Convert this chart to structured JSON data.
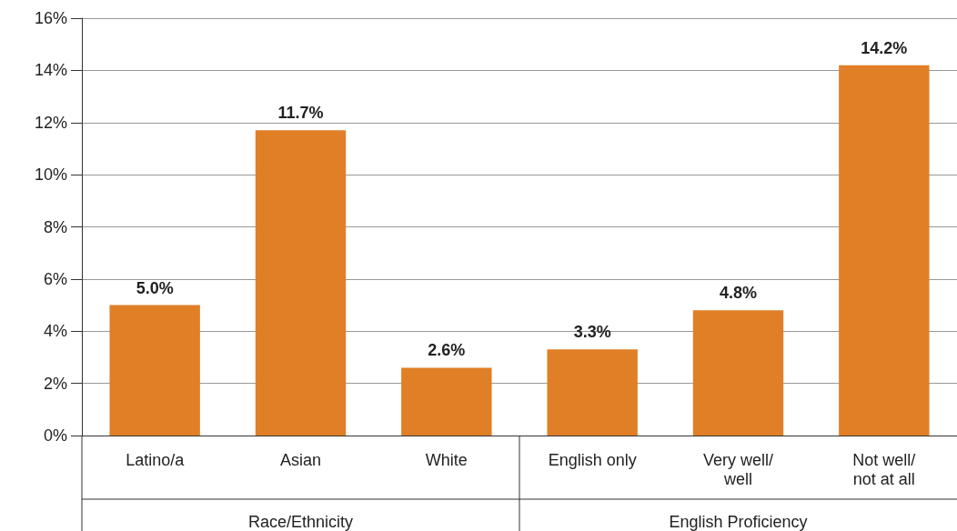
{
  "chart_data": {
    "type": "bar",
    "categories": [
      "Latino/a",
      "Asian",
      "White",
      "English only",
      "Very well/\nwell",
      "Not well/\nnot at all"
    ],
    "values": [
      5.0,
      11.7,
      2.6,
      3.3,
      4.8,
      14.2
    ],
    "value_labels": [
      "5.0%",
      "11.7%",
      "2.6%",
      "3.3%",
      "4.8%",
      "14.2%"
    ],
    "color": "#e07f26",
    "ylim": [
      0,
      16
    ],
    "yticks": [
      {
        "value": 0,
        "label": "0%"
      },
      {
        "value": 2,
        "label": "2%"
      },
      {
        "value": 4,
        "label": "4%"
      },
      {
        "value": 6,
        "label": "6%"
      },
      {
        "value": 8,
        "label": "8%"
      },
      {
        "value": 10,
        "label": "10%"
      },
      {
        "value": 12,
        "label": "12%"
      },
      {
        "value": 14,
        "label": "14%"
      },
      {
        "value": 16,
        "label": "16%"
      }
    ],
    "grid": "y",
    "annotations": [
      "Race/Ethnicity",
      "English Proficiency"
    ]
  }
}
